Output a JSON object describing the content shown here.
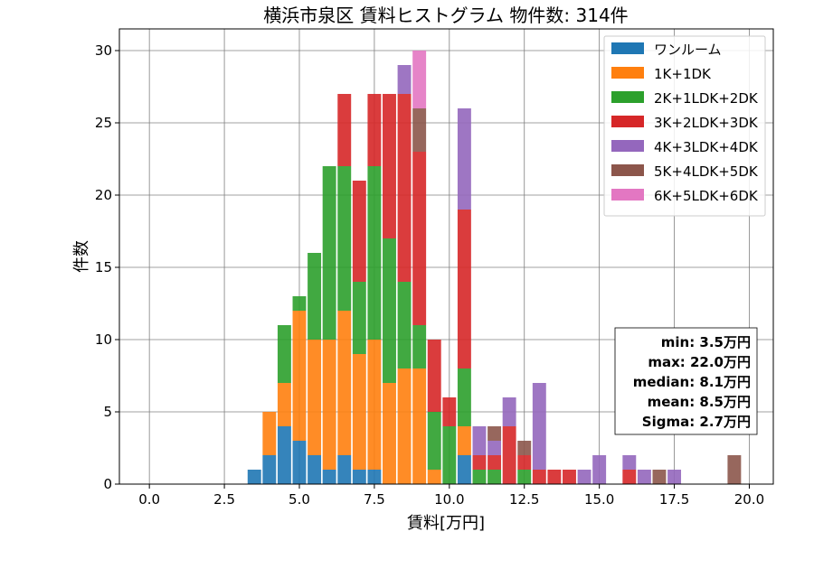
{
  "chart_data": {
    "type": "bar",
    "stacked": true,
    "title": "横浜市泉区 賃料ヒストグラム  物件数: 314件",
    "xlabel": "賃料[万円]",
    "ylabel": "件数",
    "xlim": [
      -1.0,
      20.8
    ],
    "ylim": [
      0,
      31.5
    ],
    "bin_width": 0.5,
    "bar_width": 0.45,
    "grid": true,
    "legend_position": "top-right",
    "xticks": [
      0.0,
      2.5,
      5.0,
      7.5,
      10.0,
      12.5,
      15.0,
      17.5,
      20.0
    ],
    "xtick_labels": [
      "0.0",
      "2.5",
      "5.0",
      "7.5",
      "10.0",
      "12.5",
      "15.0",
      "17.5",
      "20.0"
    ],
    "yticks": [
      0,
      5,
      10,
      15,
      20,
      25,
      30
    ],
    "ytick_labels": [
      "0",
      "5",
      "10",
      "15",
      "20",
      "25",
      "30"
    ],
    "x": [
      3.5,
      4.0,
      4.5,
      5.0,
      5.5,
      6.0,
      6.5,
      7.0,
      7.5,
      8.0,
      8.5,
      9.0,
      9.5,
      10.0,
      10.5,
      11.0,
      11.5,
      12.0,
      12.5,
      13.0,
      13.5,
      14.0,
      14.5,
      15.0,
      15.5,
      16.0,
      16.5,
      17.0,
      17.5,
      18.0,
      18.5,
      19.0,
      19.5
    ],
    "series": [
      {
        "name": "ワンルーム",
        "color": "#1f77b4",
        "values": [
          1,
          2,
          4,
          3,
          2,
          1,
          2,
          1,
          1,
          0,
          0,
          0,
          0,
          0,
          2,
          0,
          0,
          0,
          0,
          0,
          0,
          0,
          0,
          0,
          0,
          0,
          0,
          0,
          0,
          0,
          0,
          0,
          0
        ]
      },
      {
        "name": "1K+1DK",
        "color": "#ff7f0e",
        "values": [
          0,
          3,
          3,
          9,
          8,
          9,
          10,
          8,
          9,
          7,
          8,
          8,
          1,
          0,
          2,
          0,
          0,
          0,
          0,
          0,
          0,
          0,
          0,
          0,
          0,
          0,
          0,
          0,
          0,
          0,
          0,
          0,
          0
        ]
      },
      {
        "name": "2K+1LDK+2DK",
        "color": "#2ca02c",
        "values": [
          0,
          0,
          4,
          1,
          6,
          12,
          10,
          5,
          12,
          10,
          6,
          3,
          4,
          4,
          4,
          1,
          1,
          0,
          1,
          0,
          0,
          0,
          0,
          0,
          0,
          0,
          0,
          0,
          0,
          0,
          0,
          0,
          0
        ]
      },
      {
        "name": "3K+2LDK+3DK",
        "color": "#d62728",
        "values": [
          0,
          0,
          0,
          0,
          0,
          0,
          5,
          7,
          5,
          10,
          13,
          12,
          5,
          2,
          11,
          1,
          1,
          4,
          1,
          1,
          1,
          1,
          0,
          0,
          0,
          1,
          0,
          0,
          0,
          0,
          0,
          0,
          0
        ]
      },
      {
        "name": "4K+3LDK+4DK",
        "color": "#9467bd",
        "values": [
          0,
          0,
          0,
          0,
          0,
          0,
          0,
          0,
          0,
          0,
          2,
          0,
          0,
          0,
          7,
          2,
          1,
          2,
          0,
          6,
          0,
          0,
          1,
          2,
          0,
          1,
          1,
          0,
          1,
          0,
          0,
          0,
          0
        ]
      },
      {
        "name": "5K+4LDK+5DK",
        "color": "#8c564b",
        "values": [
          0,
          0,
          0,
          0,
          0,
          0,
          0,
          0,
          0,
          0,
          0,
          3,
          0,
          0,
          0,
          0,
          1,
          0,
          1,
          0,
          0,
          0,
          0,
          0,
          0,
          0,
          0,
          1,
          0,
          0,
          0,
          0,
          2
        ]
      },
      {
        "name": "6K+5LDK+6DK",
        "color": "#e377c2",
        "values": [
          0,
          0,
          0,
          0,
          0,
          0,
          0,
          0,
          0,
          0,
          0,
          4,
          0,
          0,
          0,
          0,
          0,
          0,
          0,
          0,
          0,
          0,
          0,
          0,
          0,
          0,
          0,
          0,
          0,
          0,
          0,
          0,
          0
        ]
      }
    ],
    "stats_box": [
      "min: 3.5万円",
      "max: 22.0万円",
      "median: 8.1万円",
      "mean: 8.5万円",
      "Sigma: 2.7万円"
    ]
  }
}
